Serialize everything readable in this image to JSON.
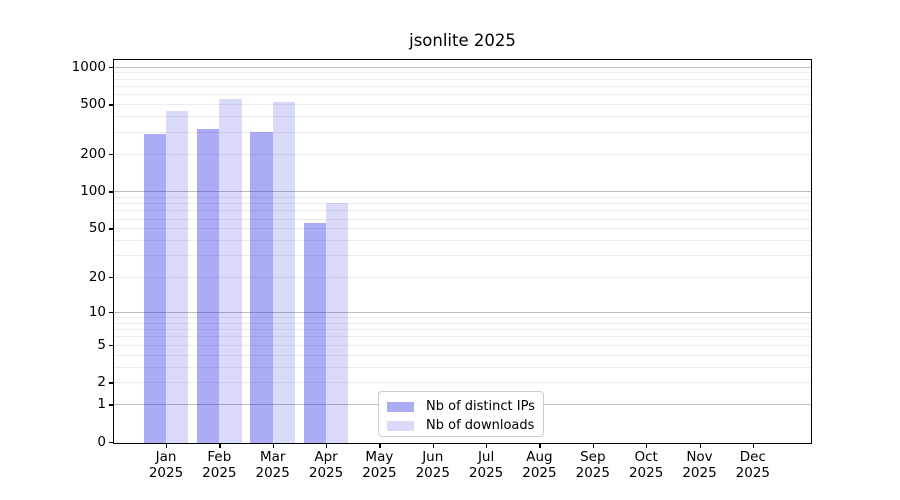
{
  "title": "jsonlite 2025",
  "legend": {
    "items": [
      {
        "label": "Nb of distinct IPs",
        "swatch_color": "#acacf6"
      },
      {
        "label": "Nb of downloads",
        "swatch_color": "#dadafb"
      }
    ]
  },
  "colors": {
    "distinct_ips_bar": "rgba(30,30,230,0.37)",
    "downloads_bar": "rgba(30,30,230,0.165)",
    "grid_minor": "#ececec",
    "grid_major": "#bdbdbd",
    "axis": "#000000"
  },
  "chart_data": {
    "type": "bar",
    "title": "jsonlite 2025",
    "categories": [
      "Jan 2025",
      "Feb 2025",
      "Mar 2025",
      "Apr 2025",
      "May 2025",
      "Jun 2025",
      "Jul 2025",
      "Aug 2025",
      "Sep 2025",
      "Oct 2025",
      "Nov 2025",
      "Dec 2025"
    ],
    "series": [
      {
        "name": "Nb of distinct IPs",
        "values": [
          290,
          315,
          300,
          55,
          null,
          null,
          null,
          null,
          null,
          null,
          null,
          null
        ]
      },
      {
        "name": "Nb of downloads",
        "values": [
          445,
          550,
          520,
          80,
          null,
          null,
          null,
          null,
          null,
          null,
          null,
          null
        ]
      }
    ],
    "xlabel": "",
    "ylabel": "",
    "yscale": "log10(value+1)",
    "yticks": [
      0,
      1,
      2,
      5,
      10,
      20,
      50,
      100,
      200,
      500,
      1000
    ],
    "ylim": [
      0,
      1000
    ],
    "grid": "on",
    "grid_axis": "y",
    "legend_position": "lower center"
  }
}
